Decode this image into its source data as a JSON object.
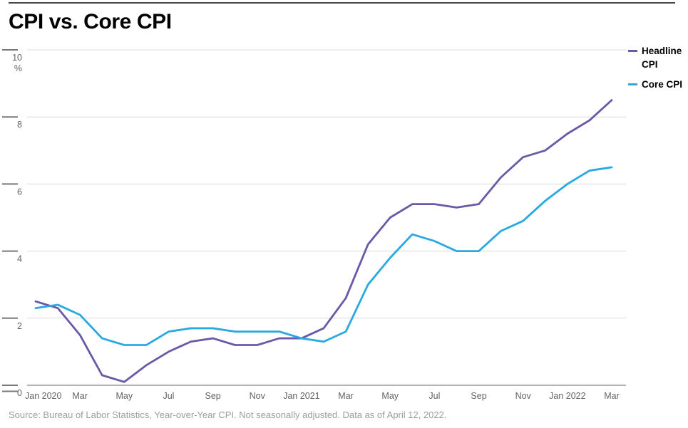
{
  "title": "CPI vs. Core CPI",
  "source": "Source: Bureau of Labor Statistics, Year-over-Year CPI. Not seasonally adjusted. Data as of April 12, 2022.",
  "legend": {
    "items": [
      {
        "label": "Headline CPI",
        "color": "#6B58A6"
      },
      {
        "label": "Core CPI",
        "color": "#29A9E1"
      }
    ]
  },
  "colors": {
    "headline_cpi": "#6B58A6",
    "core_cpi": "#29A9E1",
    "gridline": "#D9D9D9",
    "zero_axis": "#9A9A9A",
    "tick": "#787878",
    "axis_label": "#636363",
    "title": "#000000",
    "source_text": "#9D9D9D",
    "top_rule": "#474747"
  },
  "chart_data": {
    "type": "line",
    "title": "CPI vs. Core CPI",
    "xlabel": "",
    "ylabel": "%",
    "y_unit_label": "%",
    "ylim": [
      0,
      10
    ],
    "yticks": [
      0,
      2,
      4,
      6,
      8,
      10
    ],
    "grid": "horizontal",
    "legend_position": "top-right",
    "x": [
      "Jan 2020",
      "Feb 2020",
      "Mar 2020",
      "Apr 2020",
      "May 2020",
      "Jun 2020",
      "Jul 2020",
      "Aug 2020",
      "Sep 2020",
      "Oct 2020",
      "Nov 2020",
      "Dec 2020",
      "Jan 2021",
      "Feb 2021",
      "Mar 2021",
      "Apr 2021",
      "May 2021",
      "Jun 2021",
      "Jul 2021",
      "Aug 2021",
      "Sep 2021",
      "Oct 2021",
      "Nov 2021",
      "Dec 2021",
      "Jan 2022",
      "Feb 2022",
      "Mar 2022"
    ],
    "xticklabels": [
      "Jan 2020",
      "Mar",
      "May",
      "Jul",
      "Sep",
      "Nov",
      "Jan 2021",
      "Mar",
      "May",
      "Jul",
      "Sep",
      "Nov",
      "Jan 2022",
      "Mar"
    ],
    "xtick_every_n_months": 2,
    "series": [
      {
        "name": "Headline CPI",
        "color": "#6B58A6",
        "values": [
          2.5,
          2.3,
          1.5,
          0.3,
          0.1,
          0.6,
          1.0,
          1.3,
          1.4,
          1.2,
          1.2,
          1.4,
          1.4,
          1.7,
          2.6,
          4.2,
          5.0,
          5.4,
          5.4,
          5.3,
          5.4,
          6.2,
          6.8,
          7.0,
          7.5,
          7.9,
          8.5
        ]
      },
      {
        "name": "Core CPI",
        "color": "#29A9E1",
        "values": [
          2.3,
          2.4,
          2.1,
          1.4,
          1.2,
          1.2,
          1.6,
          1.7,
          1.7,
          1.6,
          1.6,
          1.6,
          1.4,
          1.3,
          1.6,
          3.0,
          3.8,
          4.5,
          4.3,
          4.0,
          4.0,
          4.6,
          4.9,
          5.5,
          6.0,
          6.4,
          6.5
        ]
      }
    ]
  }
}
